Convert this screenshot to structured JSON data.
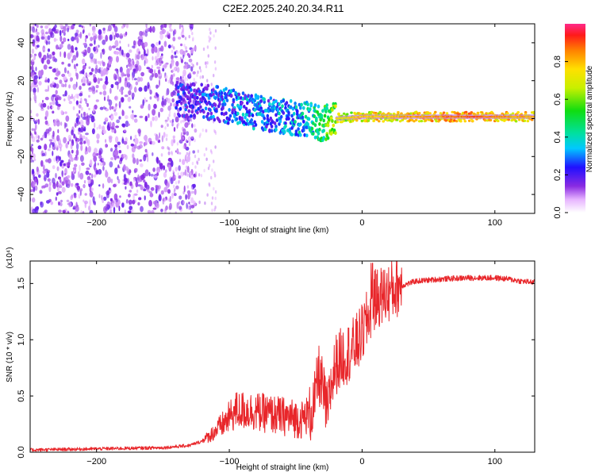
{
  "title": "C2E2.2025.240.20.34.R11",
  "chart_data": [
    {
      "type": "heatmap",
      "name": "spectrogram",
      "xlabel": "Height of straight line (km)",
      "ylabel": "Frequency (Hz)",
      "xlim": [
        -250,
        130
      ],
      "ylim": [
        -50,
        50
      ],
      "xticks": [
        -200,
        -100,
        0,
        100
      ],
      "yticks": [
        -40,
        -20,
        0,
        20,
        40
      ],
      "colorbar": {
        "label": "Normalized spectral amplitude",
        "range": [
          0,
          1
        ],
        "ticks": [
          0.0,
          0.2,
          0.4,
          0.6,
          0.8
        ],
        "tick_labels": [
          "0.0",
          "0.2",
          "0.4",
          "0.6",
          "0.8"
        ]
      },
      "signal_track": [
        {
          "x": -130,
          "f": 10,
          "amp": 0.3
        },
        {
          "x": -110,
          "f": 8,
          "amp": 0.35
        },
        {
          "x": -90,
          "f": 5,
          "amp": 0.4
        },
        {
          "x": -70,
          "f": 2,
          "amp": 0.4
        },
        {
          "x": -50,
          "f": 0,
          "amp": 0.45
        },
        {
          "x": -40,
          "f": 0,
          "amp": 0.5
        },
        {
          "x": -30,
          "f": -3,
          "amp": 0.6
        },
        {
          "x": -20,
          "f": 0,
          "amp": 0.75
        },
        {
          "x": 0,
          "f": 1,
          "amp": 0.85
        },
        {
          "x": 20,
          "f": 1,
          "amp": 0.85
        },
        {
          "x": 60,
          "f": 1,
          "amp": 0.9
        },
        {
          "x": 85,
          "f": 1,
          "amp": 0.95
        },
        {
          "x": 100,
          "f": 1,
          "amp": 0.9
        },
        {
          "x": 130,
          "f": 1,
          "amp": 0.85
        }
      ]
    },
    {
      "type": "line",
      "name": "snr",
      "xlabel": "Height of straight line (km)",
      "ylabel": "SNR (10 * v/v)",
      "y_multiplier": "(x10⁴)",
      "xlim": [
        -250,
        130
      ],
      "ylim": [
        0,
        1.7
      ],
      "xticks": [
        -200,
        -100,
        0,
        100
      ],
      "yticks": [
        0.0,
        0.5,
        1.0,
        1.5
      ],
      "ytick_labels": [
        "0.0",
        "0.5",
        "1.0",
        "1.5"
      ],
      "color": "#e8262a",
      "series": [
        {
          "name": "SNR",
          "points": [
            [
              -250,
              0.02
            ],
            [
              -200,
              0.03
            ],
            [
              -150,
              0.04
            ],
            [
              -130,
              0.06
            ],
            [
              -115,
              0.12
            ],
            [
              -105,
              0.2
            ],
            [
              -95,
              0.3
            ],
            [
              -85,
              0.3
            ],
            [
              -75,
              0.28
            ],
            [
              -65,
              0.26
            ],
            [
              -55,
              0.24
            ],
            [
              -45,
              0.22
            ],
            [
              -40,
              0.28
            ],
            [
              -35,
              0.45
            ],
            [
              -33,
              0.68
            ],
            [
              -30,
              0.55
            ],
            [
              -26,
              0.3
            ],
            [
              -24,
              0.52
            ],
            [
              -20,
              0.75
            ],
            [
              -15,
              0.82
            ],
            [
              -10,
              0.86
            ],
            [
              -5,
              0.92
            ],
            [
              0,
              1.02
            ],
            [
              5,
              1.18
            ],
            [
              8,
              1.3
            ],
            [
              12,
              1.35
            ],
            [
              18,
              1.38
            ],
            [
              24,
              1.42
            ],
            [
              30,
              1.48
            ],
            [
              40,
              1.52
            ],
            [
              60,
              1.54
            ],
            [
              80,
              1.55
            ],
            [
              100,
              1.55
            ],
            [
              110,
              1.54
            ],
            [
              120,
              1.52
            ],
            [
              130,
              1.51
            ]
          ]
        }
      ]
    }
  ]
}
